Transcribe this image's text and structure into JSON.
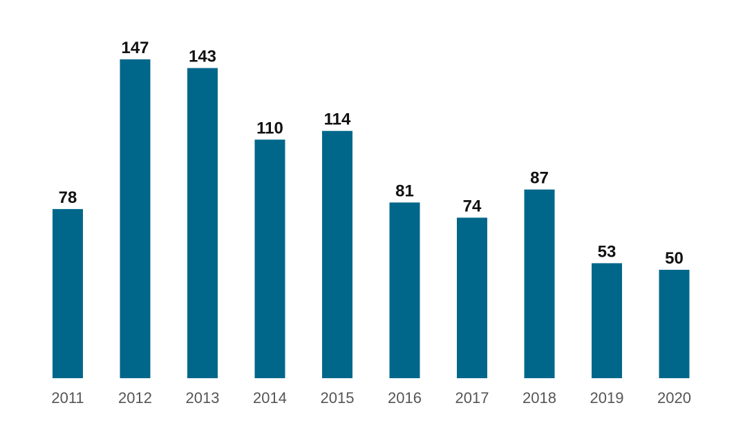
{
  "chart_data": {
    "type": "bar",
    "categories": [
      "2011",
      "2012",
      "2013",
      "2014",
      "2015",
      "2016",
      "2017",
      "2018",
      "2019",
      "2020"
    ],
    "values": [
      78,
      147,
      143,
      110,
      114,
      81,
      74,
      87,
      53,
      50
    ],
    "title": "",
    "xlabel": "",
    "ylabel": "",
    "ylim": [
      0,
      147
    ],
    "grid": false,
    "data_labels": true,
    "bar_color": "#00678A"
  }
}
